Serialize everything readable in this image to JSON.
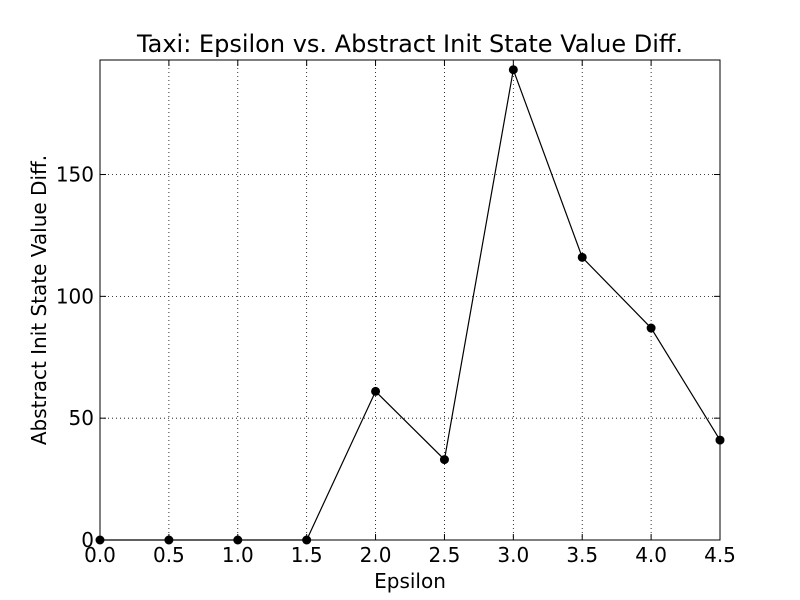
{
  "chart_data": {
    "type": "line",
    "title": "Taxi: Epsilon vs. Abstract Init State Value Diff.",
    "xlabel": "Epsilon",
    "ylabel": "Abstract Init State Value Diff.",
    "x": [
      0.0,
      0.5,
      1.0,
      1.5,
      2.0,
      2.5,
      3.0,
      3.5,
      4.0,
      4.5
    ],
    "series": [
      {
        "values": [
          0,
          0,
          0,
          0,
          61,
          33,
          193,
          116,
          87,
          41
        ]
      }
    ],
    "xlim": [
      0,
      4.5
    ],
    "ylim": [
      0,
      197
    ],
    "xticks": [
      0.0,
      0.5,
      1.0,
      1.5,
      2.0,
      2.5,
      3.0,
      3.5,
      4.0,
      4.5
    ],
    "xtick_labels": [
      "0.0",
      "0.5",
      "1.0",
      "1.5",
      "2.0",
      "2.5",
      "3.0",
      "3.5",
      "4.0",
      "4.5"
    ],
    "yticks": [
      0,
      50,
      100,
      150
    ],
    "ytick_labels": [
      "0",
      "50",
      "100",
      "150"
    ],
    "grid": true,
    "legend": "none",
    "line_color": "#000000",
    "marker_color": "#000000"
  }
}
